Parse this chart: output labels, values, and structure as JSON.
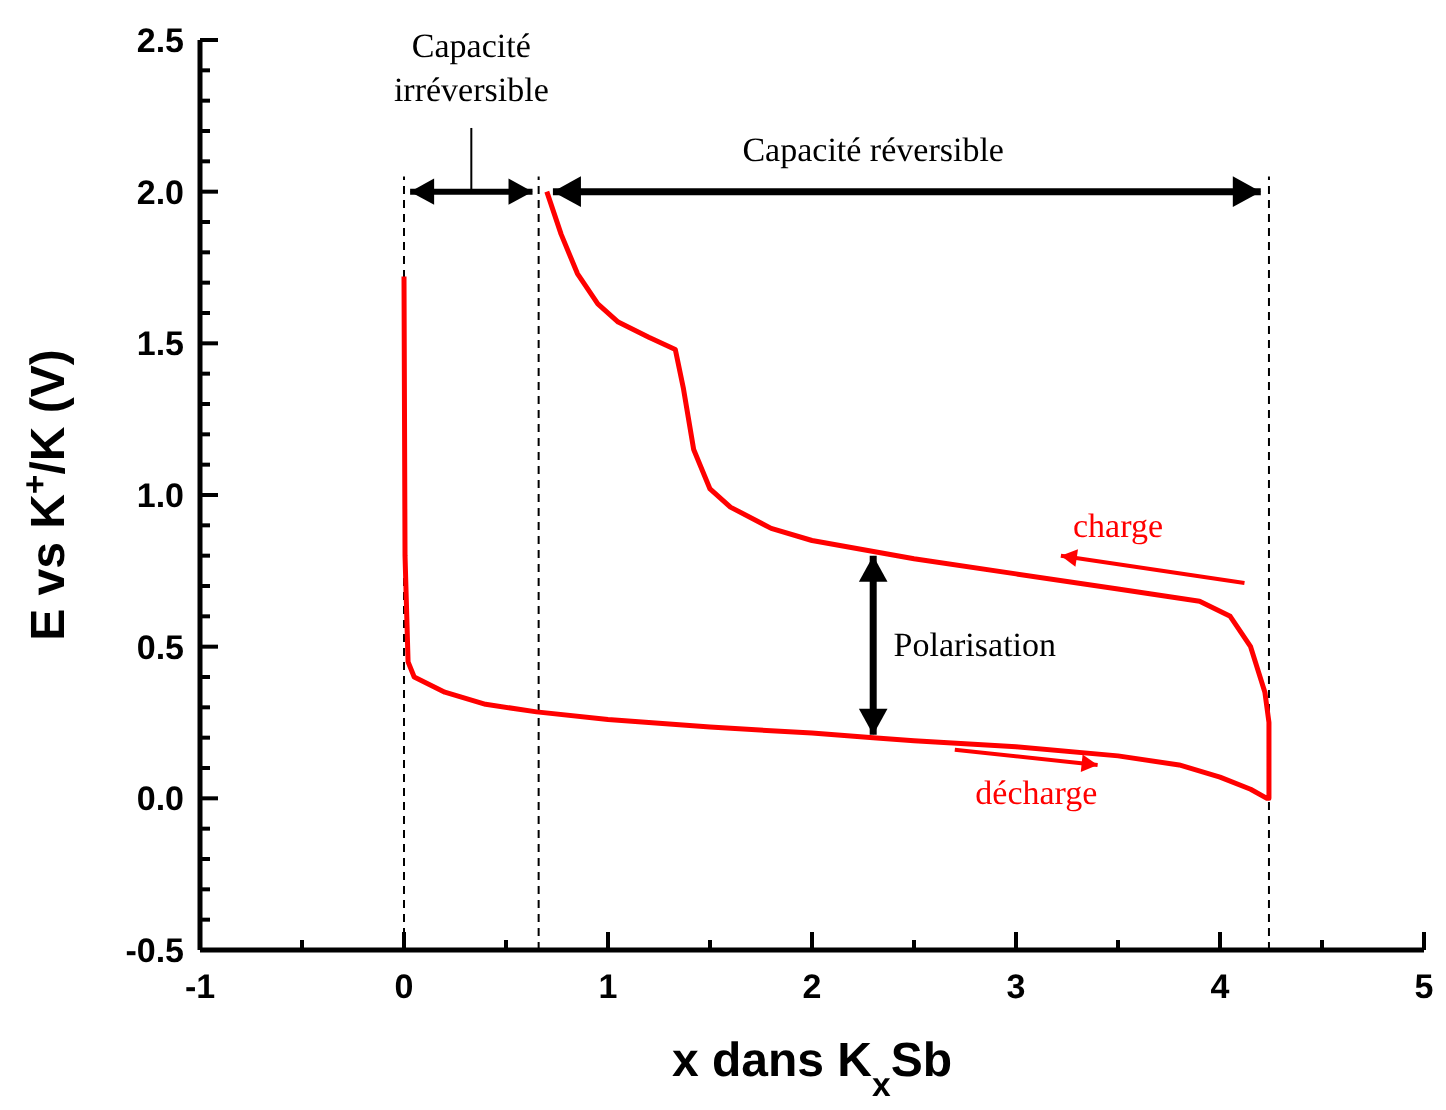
{
  "chart_data": {
    "type": "line",
    "xlabel": "x dans K$_{x}$Sb",
    "ylabel": "E vs K$^{+}$/K (V)",
    "xlim": [
      -1,
      5
    ],
    "ylim": [
      -0.5,
      2.5
    ],
    "xticks": [
      -1,
      {
        "value": -0.5,
        "label": null
      },
      0,
      {
        "value": 0.5,
        "label": null
      },
      1,
      {
        "value": 1.5,
        "label": null
      },
      2,
      {
        "value": 2.5,
        "label": null
      },
      3,
      {
        "value": 3.5,
        "label": null
      },
      4,
      {
        "value": 4.5,
        "label": null
      },
      5
    ],
    "yticks": [
      {
        "value": -0.5,
        "label": "-0.5"
      },
      {
        "value": -0.4,
        "label": null
      },
      {
        "value": -0.3,
        "label": null
      },
      {
        "value": -0.2,
        "label": null
      },
      {
        "value": -0.1,
        "label": null
      },
      {
        "value": 0,
        "label": "0.0"
      },
      {
        "value": 0.1,
        "label": null
      },
      {
        "value": 0.2,
        "label": null
      },
      {
        "value": 0.3,
        "label": null
      },
      {
        "value": 0.4,
        "label": null
      },
      {
        "value": 0.5,
        "label": "0.5"
      },
      {
        "value": 0.6,
        "label": null
      },
      {
        "value": 0.7,
        "label": null
      },
      {
        "value": 0.8,
        "label": null
      },
      {
        "value": 0.9,
        "label": null
      },
      {
        "value": 1,
        "label": "1.0"
      },
      {
        "value": 1.1,
        "label": null
      },
      {
        "value": 1.2,
        "label": null
      },
      {
        "value": 1.3,
        "label": null
      },
      {
        "value": 1.4,
        "label": null
      },
      {
        "value": 1.5,
        "label": "1.5"
      },
      {
        "value": 1.6,
        "label": null
      },
      {
        "value": 1.7,
        "label": null
      },
      {
        "value": 1.8,
        "label": null
      },
      {
        "value": 1.9,
        "label": null
      },
      {
        "value": 2,
        "label": "2.0"
      },
      {
        "value": 2.1,
        "label": null
      },
      {
        "value": 2.2,
        "label": null
      },
      {
        "value": 2.3,
        "label": null
      },
      {
        "value": 2.4,
        "label": null
      },
      {
        "value": 2.5,
        "label": "2.5"
      }
    ],
    "grid": false,
    "line_style": "solid",
    "series": [
      {
        "color": "#ff0000",
        "x": [
          0,
          0.005,
          0.02,
          0.05,
          0.2,
          0.4,
          0.65,
          1,
          1.5,
          2,
          2.3,
          2.5,
          3,
          3.5,
          3.8,
          4,
          4.15,
          4.23,
          4.24,
          4.24,
          4.22,
          4.15,
          4.05,
          3.9,
          3.5,
          3,
          2.5,
          2,
          1.8,
          1.6,
          1.5,
          1.42,
          1.37,
          1.33,
          1.2,
          1.05,
          0.95,
          0.85,
          0.77,
          0.7
        ],
        "values": [
          1.72,
          0.8,
          0.45,
          0.4,
          0.35,
          0.31,
          0.285,
          0.26,
          0.235,
          0.215,
          0.2,
          0.19,
          0.17,
          0.14,
          0.11,
          0.07,
          0.03,
          0,
          0,
          0.25,
          0.35,
          0.5,
          0.6,
          0.65,
          0.69,
          0.74,
          0.79,
          0.85,
          0.89,
          0.96,
          1.02,
          1.15,
          1.35,
          1.48,
          1.52,
          1.57,
          1.63,
          1.73,
          1.86,
          2
        ]
      }
    ],
    "ref_lines": [
      {
        "axis": "x",
        "value": 0,
        "color": "#000000",
        "line_style": "dashed"
      },
      {
        "axis": "x",
        "value": 0.66,
        "color": "#000000",
        "line_style": "dashed"
      },
      {
        "axis": "x",
        "value": 4.24,
        "color": "#000000",
        "line_style": "dashed"
      }
    ],
    "annotations": [
      "Capacité\nirréversible",
      "Capacité réversible",
      "Polarisation",
      "charge",
      "décharge"
    ]
  }
}
